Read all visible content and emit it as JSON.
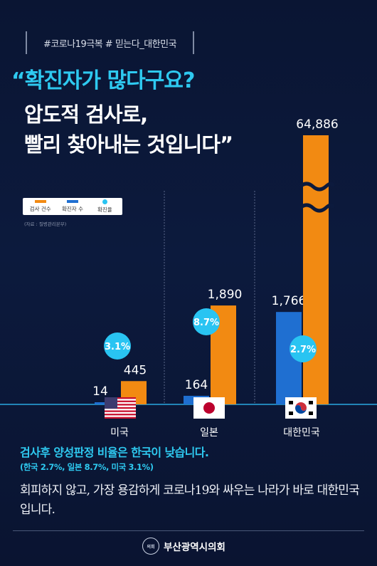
{
  "hashtags": "#코로나19극복 # 믿는다_대한민국",
  "headline": {
    "line1": "“확진자가 많다구요?",
    "line2": "압도적 검사로,",
    "line3": "빨리 찾아내는 것입니다”"
  },
  "legend": {
    "items": [
      {
        "label": "검사 건수",
        "color": "#f28a12"
      },
      {
        "label": "확진자 수",
        "color": "#1f6fd1"
      },
      {
        "label": "확진율",
        "color": "#29c4f2"
      }
    ]
  },
  "source": "(자료 : 질병관리본부)",
  "colors": {
    "tests": "#f28a12",
    "cases": "#1f6fd1",
    "rate": "#29c4f2",
    "accent": "#2ec9f0"
  },
  "chart_data": {
    "type": "bar",
    "categories": [
      "미국",
      "일본",
      "대한민국"
    ],
    "series": [
      {
        "name": "검사 건수",
        "values": [
          445,
          1890,
          64886
        ],
        "labels": [
          "445",
          "1,890",
          "64,886"
        ]
      },
      {
        "name": "확진자 수",
        "values": [
          14,
          164,
          1766
        ],
        "labels": [
          "14",
          "164",
          "1,766"
        ]
      },
      {
        "name": "확진율",
        "values": [
          3.1,
          8.7,
          2.7
        ],
        "labels": [
          "3.1%",
          "8.7%",
          "2.7%"
        ]
      }
    ],
    "axis_break": "64,886 bar is truncated with a wavy break"
  },
  "subhead": "검사후 양성판정 비율은 한국이 낮습니다.",
  "subhead_detail": "(한국 2.7%, 일본 8.7%, 미국 3.1%)",
  "body": "회피하지 않고, 가장 용감하게 코로나19와 싸우는 나라가 바로 대한민국입니다.",
  "footer": {
    "org": "부산광역시의회",
    "seal_text": "의회"
  }
}
